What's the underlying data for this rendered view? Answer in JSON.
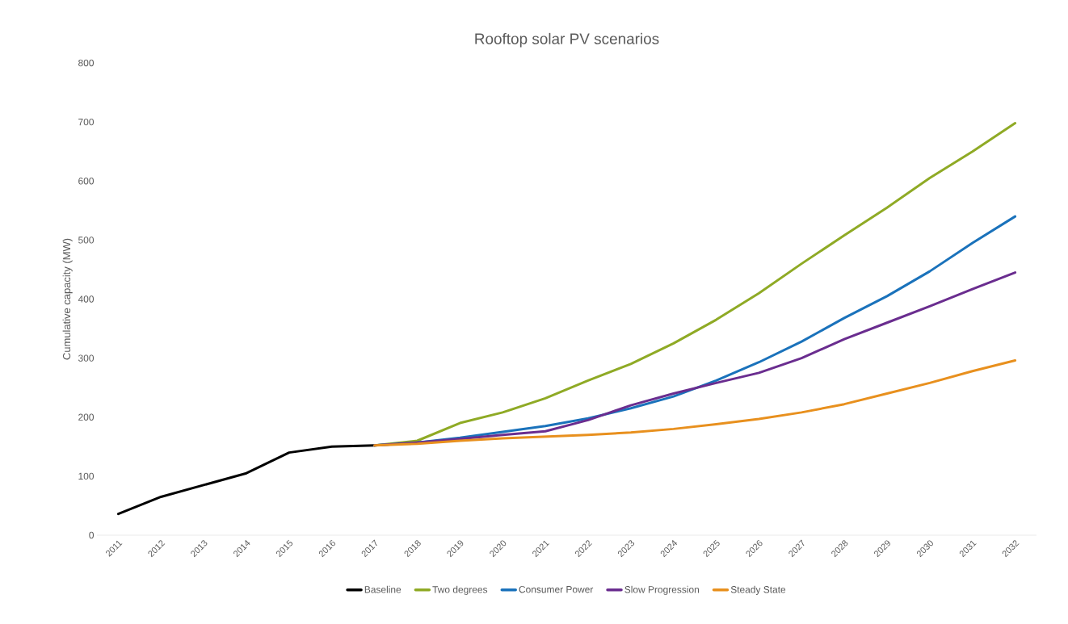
{
  "chart_data": {
    "type": "line",
    "title": "Rooftop solar PV scenarios",
    "ylabel": "Cumulative capacity (MW)",
    "categories": [
      "2011",
      "2012",
      "2013",
      "2014",
      "2015",
      "2016",
      "2017",
      "2018",
      "2019",
      "2020",
      "2021",
      "2022",
      "2023",
      "2024",
      "2025",
      "2026",
      "2027",
      "2028",
      "2029",
      "2030",
      "2031",
      "2032"
    ],
    "series": [
      {
        "name": "Baseline",
        "color": "#000000",
        "values": [
          36,
          65,
          85,
          105,
          140,
          150,
          152,
          null,
          null,
          null,
          null,
          null,
          null,
          null,
          null,
          null,
          null,
          null,
          null,
          null,
          null,
          null
        ]
      },
      {
        "name": "Two degrees",
        "color": "#8faa25",
        "values": [
          null,
          null,
          null,
          null,
          null,
          null,
          152,
          160,
          190,
          208,
          232,
          262,
          290,
          325,
          365,
          410,
          460,
          508,
          555,
          605,
          650,
          698
        ]
      },
      {
        "name": "Consumer Power",
        "color": "#1a72bb",
        "values": [
          null,
          null,
          null,
          null,
          null,
          null,
          152,
          157,
          165,
          175,
          185,
          198,
          215,
          235,
          262,
          293,
          328,
          368,
          405,
          447,
          495,
          540
        ]
      },
      {
        "name": "Slow Progression",
        "color": "#6a2d8f",
        "values": [
          null,
          null,
          null,
          null,
          null,
          null,
          152,
          157,
          163,
          170,
          176,
          195,
          220,
          240,
          258,
          275,
          300,
          332,
          360,
          388,
          417,
          445
        ]
      },
      {
        "name": "Steady State",
        "color": "#e8901e",
        "values": [
          null,
          null,
          null,
          null,
          null,
          null,
          152,
          155,
          160,
          164,
          167,
          170,
          174,
          180,
          188,
          197,
          208,
          222,
          240,
          258,
          278,
          296
        ]
      }
    ],
    "ylim": [
      0,
      800
    ],
    "yticks": [
      0,
      100,
      200,
      300,
      400,
      500,
      600,
      700,
      800
    ],
    "grid": false,
    "legend": "bottom",
    "marker": "none",
    "line_style": "solid"
  }
}
